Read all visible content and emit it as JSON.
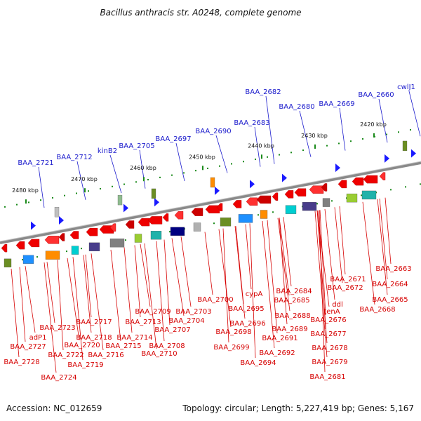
{
  "title": "Bacillus anthracis str. A0248, complete genome",
  "footer": {
    "accession": "Accession: NC_012659",
    "topology": "Topology: circular; Length: 5,227,419 bp; Genes: 5,167"
  },
  "colors": {
    "top_label": "#1a1acc",
    "bottom_label": "#d60000",
    "forward_gene": "#1a1aff",
    "reverse_gene": "#ee0000",
    "kbp_tick": "#1a8a1a",
    "backbone": "#808080"
  },
  "ticks": [
    "2480 kbp",
    "2470 kbp",
    "2460 kbp",
    "2450 kbp",
    "2440 kbp",
    "2430 kbp",
    "2420 kbp"
  ],
  "top_labels": [
    "BAA_2721",
    "BAA_2712",
    "kinB2",
    "BAA_2705",
    "BAA_2697",
    "BAA_2690",
    "BAA_2683",
    "BAA_2682",
    "BAA_2680",
    "BAA_2669",
    "BAA_2660",
    "cwlJ1"
  ],
  "bottom_labels": [
    "BAA_2663",
    "BAA_2664",
    "BAA_2665",
    "BAA_2668",
    "BAA_2671",
    "BAA_2672",
    "ddl",
    "tenA",
    "BAA_2676",
    "BAA_2677",
    "BAA_2678",
    "BAA_2679",
    "BAA_2681",
    "BAA_2684",
    "BAA_2685",
    "BAA_2688",
    "cypA",
    "BAA_2689",
    "BAA_2691",
    "BAA_2692",
    "BAA_2694",
    "BAA_2695",
    "BAA_2696",
    "BAA_2698",
    "BAA_2699",
    "BAA_2700",
    "BAA_2703",
    "BAA_2704",
    "BAA_2707",
    "BAA_2708",
    "BAA_2709",
    "BAA_2710",
    "BAA_2713",
    "BAA_2714",
    "BAA_2715",
    "BAA_2716",
    "BAA_2717",
    "BAA_2718",
    "BAA_2719",
    "BAA_2720",
    "BAA_2722",
    "BAA_2723",
    "adP1",
    "BAA_2724",
    "BAA_2727",
    "BAA_2728"
  ]
}
